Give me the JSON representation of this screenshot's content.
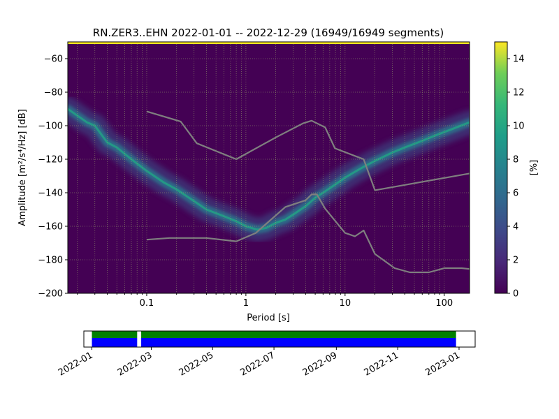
{
  "chart_data": [
    {
      "type": "heatmap",
      "title": "RN.ZER3..EHN   2022-01-01 -- 2022-12-29  (16949/16949 segments)",
      "xlabel": "Period [s]",
      "ylabel": "Amplitude [m²/s⁴/Hz] [dB]",
      "x_scale": "log",
      "xlim": [
        0.016,
        180
      ],
      "ylim": [
        -200,
        -50
      ],
      "grid": true,
      "xticks": [
        {
          "value": 0.1,
          "label": "0.1"
        },
        {
          "value": 1,
          "label": "1"
        },
        {
          "value": 10,
          "label": "10"
        },
        {
          "value": 100,
          "label": "100"
        }
      ],
      "yticks": [
        {
          "value": -60,
          "label": "−60"
        },
        {
          "value": -80,
          "label": "−80"
        },
        {
          "value": -100,
          "label": "−100"
        },
        {
          "value": -120,
          "label": "−120"
        },
        {
          "value": -140,
          "label": "−140"
        },
        {
          "value": -160,
          "label": "−160"
        },
        {
          "value": -180,
          "label": "−180"
        },
        {
          "value": -200,
          "label": "−200"
        }
      ],
      "colormap": "viridis",
      "background_color": "#440154",
      "colorbar": {
        "label": "[%]",
        "range": [
          0,
          15
        ],
        "ticks": [
          {
            "value": 0,
            "label": "0"
          },
          {
            "value": 2,
            "label": "2"
          },
          {
            "value": 4,
            "label": "4"
          },
          {
            "value": 6,
            "label": "6"
          },
          {
            "value": 8,
            "label": "8"
          },
          {
            "value": 10,
            "label": "10"
          },
          {
            "value": 12,
            "label": "12"
          },
          {
            "value": 14,
            "label": "14"
          }
        ]
      },
      "series": [
        {
          "color": "#7f7f7f",
          "points": [
            [
              0.1,
              -91.5
            ],
            [
              0.22,
              -97.5
            ],
            [
              0.32,
              -110.5
            ],
            [
              0.8,
              -120
            ],
            [
              2.0,
              -107
            ],
            [
              3.8,
              -98.5
            ],
            [
              4.6,
              -97
            ],
            [
              6.3,
              -101
            ],
            [
              7.9,
              -113.5
            ],
            [
              15.4,
              -120
            ],
            [
              20,
              -138.5
            ],
            [
              180,
              -128.5
            ]
          ]
        },
        {
          "color": "#7f7f7f",
          "points": [
            [
              0.1,
              -168
            ],
            [
              0.17,
              -167
            ],
            [
              0.4,
              -167
            ],
            [
              0.8,
              -169
            ],
            [
              1.26,
              -164
            ],
            [
              2.5,
              -148.5
            ],
            [
              4.0,
              -144.5
            ],
            [
              4.6,
              -141
            ],
            [
              5.2,
              -141
            ],
            [
              6.3,
              -149.5
            ],
            [
              10,
              -164
            ],
            [
              12.6,
              -166
            ],
            [
              15.4,
              -162.5
            ],
            [
              20,
              -176.5
            ],
            [
              31.6,
              -185
            ],
            [
              45,
              -187.5
            ],
            [
              70,
              -187.5
            ],
            [
              100,
              -185
            ],
            [
              150,
              -185
            ],
            [
              180,
              -185.5
            ]
          ]
        }
      ],
      "density_ridge": [
        [
          0.016,
          -90
        ],
        [
          0.025,
          -98
        ],
        [
          0.03,
          -100
        ],
        [
          0.04,
          -110
        ],
        [
          0.05,
          -113
        ],
        [
          0.07,
          -120
        ],
        [
          0.1,
          -127
        ],
        [
          0.15,
          -134
        ],
        [
          0.2,
          -138
        ],
        [
          0.3,
          -145
        ],
        [
          0.4,
          -150
        ],
        [
          0.6,
          -154
        ],
        [
          0.8,
          -157
        ],
        [
          1.0,
          -160
        ],
        [
          1.3,
          -162
        ],
        [
          1.6,
          -161
        ],
        [
          2.0,
          -158
        ],
        [
          2.5,
          -156
        ],
        [
          3.0,
          -153
        ],
        [
          4.0,
          -148
        ],
        [
          5.0,
          -143
        ],
        [
          6.0,
          -140
        ],
        [
          8.0,
          -135
        ],
        [
          10,
          -131
        ],
        [
          13,
          -127
        ],
        [
          16,
          -124
        ],
        [
          20,
          -121
        ],
        [
          30,
          -116
        ],
        [
          40,
          -113
        ],
        [
          60,
          -109
        ],
        [
          80,
          -106
        ],
        [
          120,
          -102
        ],
        [
          180,
          -98
        ]
      ]
    },
    {
      "type": "timeline",
      "xlim": [
        "2021-12-24",
        "2023-01-17"
      ],
      "xticks": [
        "2022-01",
        "2022-03",
        "2022-05",
        "2022-07",
        "2022-09",
        "2022-11",
        "2023-01"
      ],
      "coverage": [
        {
          "start": "2022-01-01",
          "end": "2022-02-15",
          "colors": [
            "#008000",
            "#0000ff"
          ]
        },
        {
          "start": "2022-02-19",
          "end": "2022-12-29",
          "colors": [
            "#008000",
            "#0000ff"
          ]
        }
      ]
    }
  ]
}
